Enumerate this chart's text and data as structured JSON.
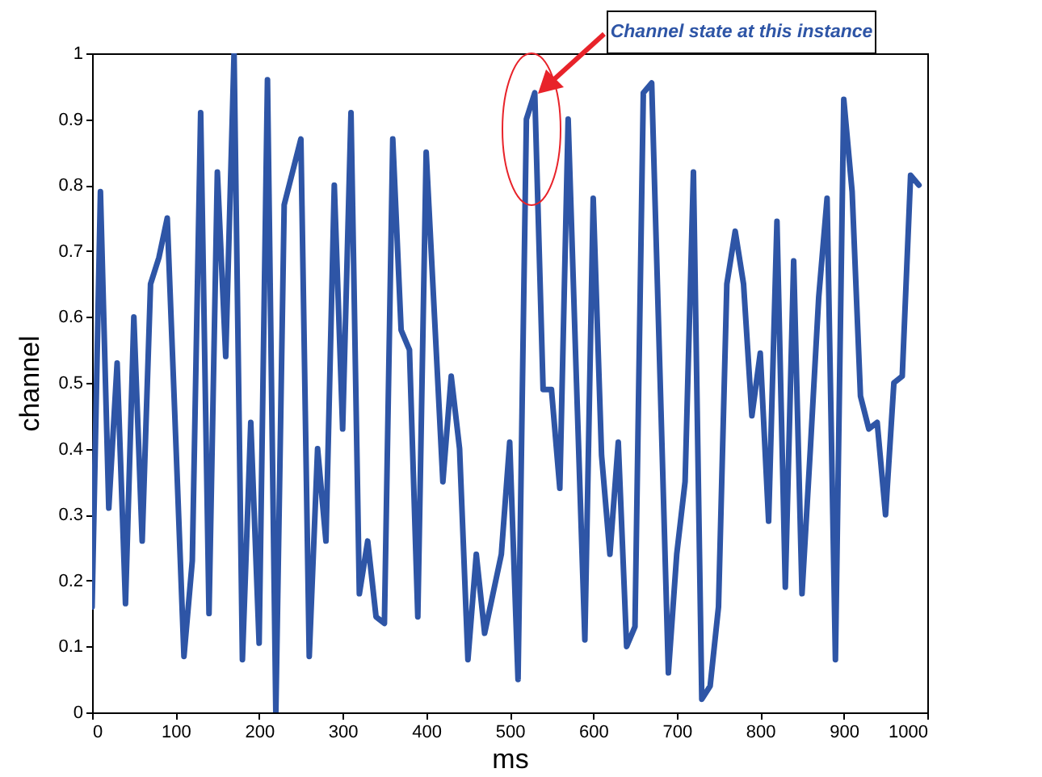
{
  "chart_data": {
    "type": "line",
    "xlabel": "ms",
    "ylabel": "channel",
    "x": [
      0,
      10,
      20,
      30,
      40,
      50,
      60,
      70,
      80,
      90,
      100,
      110,
      120,
      130,
      140,
      150,
      160,
      170,
      180,
      190,
      200,
      210,
      220,
      230,
      240,
      250,
      260,
      270,
      280,
      290,
      300,
      310,
      320,
      330,
      340,
      350,
      360,
      370,
      380,
      390,
      400,
      410,
      420,
      430,
      440,
      450,
      460,
      470,
      480,
      490,
      500,
      510,
      520,
      530,
      540,
      550,
      560,
      570,
      580,
      590,
      600,
      610,
      620,
      630,
      640,
      650,
      660,
      670,
      680,
      690,
      700,
      710,
      720,
      730,
      740,
      750,
      760,
      770,
      780,
      790,
      800,
      810,
      820,
      830,
      840,
      850,
      860,
      870,
      880,
      890,
      900,
      910,
      920,
      930,
      940,
      950,
      960,
      970,
      980,
      990
    ],
    "series": [
      {
        "color": "#2e55a6",
        "values": [
          0.16,
          0.79,
          0.31,
          0.53,
          0.165,
          0.6,
          0.26,
          0.65,
          0.69,
          0.75,
          0.42,
          0.085,
          0.23,
          0.91,
          0.15,
          0.82,
          0.54,
          1.0,
          0.08,
          0.44,
          0.105,
          0.96,
          0.0,
          0.77,
          0.82,
          0.87,
          0.085,
          0.4,
          0.26,
          0.8,
          0.43,
          0.91,
          0.18,
          0.26,
          0.145,
          0.135,
          0.87,
          0.58,
          0.55,
          0.145,
          0.85,
          0.6,
          0.35,
          0.51,
          0.4,
          0.08,
          0.24,
          0.12,
          0.18,
          0.24,
          0.41,
          0.05,
          0.9,
          0.94,
          0.49,
          0.49,
          0.34,
          0.9,
          0.5,
          0.11,
          0.78,
          0.39,
          0.24,
          0.41,
          0.1,
          0.13,
          0.94,
          0.955,
          0.51,
          0.06,
          0.24,
          0.35,
          0.82,
          0.02,
          0.04,
          0.16,
          0.65,
          0.73,
          0.65,
          0.45,
          0.545,
          0.29,
          0.745,
          0.19,
          0.685,
          0.18,
          0.4,
          0.63,
          0.78,
          0.08,
          0.93,
          0.79,
          0.48,
          0.43,
          0.44,
          0.3,
          0.5,
          0.51,
          0.815,
          0.8
        ]
      }
    ],
    "xlim": [
      0,
      1000
    ],
    "xticks": [
      0,
      100,
      200,
      300,
      400,
      500,
      600,
      700,
      800,
      900,
      1000
    ],
    "ylim": [
      0,
      1
    ],
    "yticks": [
      0,
      0.1,
      0.2,
      0.3,
      0.4,
      0.5,
      0.6,
      0.7,
      0.8,
      0.9,
      1
    ],
    "grid": false,
    "marker": "none",
    "line_style": "solid",
    "annotations": [
      "Channel state at this instance"
    ]
  }
}
